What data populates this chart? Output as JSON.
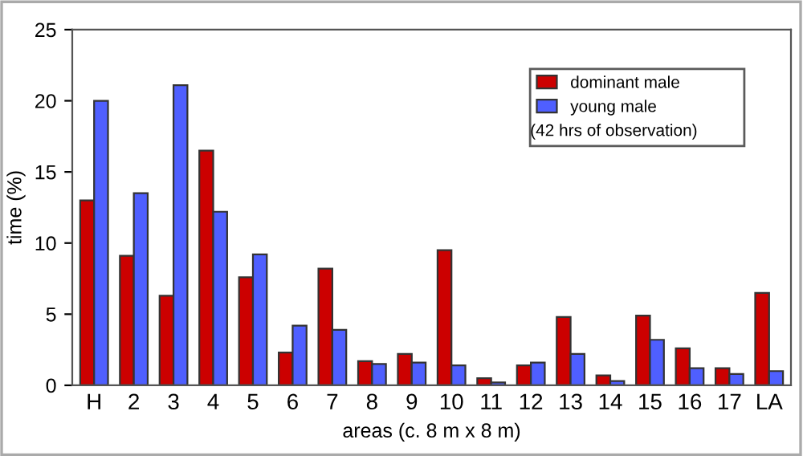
{
  "chart_data": {
    "type": "bar",
    "xlabel": "areas (c. 8 m x 8 m)",
    "ylabel": "time (%)",
    "categories": [
      "H",
      "2",
      "3",
      "4",
      "5",
      "6",
      "7",
      "8",
      "9",
      "10",
      "11",
      "12",
      "13",
      "14",
      "15",
      "16",
      "17",
      "LA"
    ],
    "series": [
      {
        "name": "dominant male",
        "color": "#cc0000",
        "values": [
          13.0,
          9.1,
          6.3,
          16.5,
          7.6,
          2.3,
          8.2,
          1.7,
          2.2,
          9.5,
          0.5,
          1.4,
          4.8,
          0.7,
          4.9,
          2.6,
          1.2,
          6.5
        ]
      },
      {
        "name": "young male",
        "color": "#4f5fff",
        "values": [
          20.0,
          13.5,
          21.1,
          12.2,
          9.2,
          4.2,
          3.9,
          1.5,
          1.6,
          1.4,
          0.2,
          1.6,
          2.2,
          0.3,
          3.2,
          1.2,
          0.8,
          1.0
        ]
      }
    ],
    "ylim": [
      0,
      25
    ],
    "yticks": [
      0,
      5,
      10,
      15,
      20,
      25
    ],
    "grid": false,
    "legend": "top right",
    "annotations": [
      "(42 hrs of observation)"
    ]
  }
}
